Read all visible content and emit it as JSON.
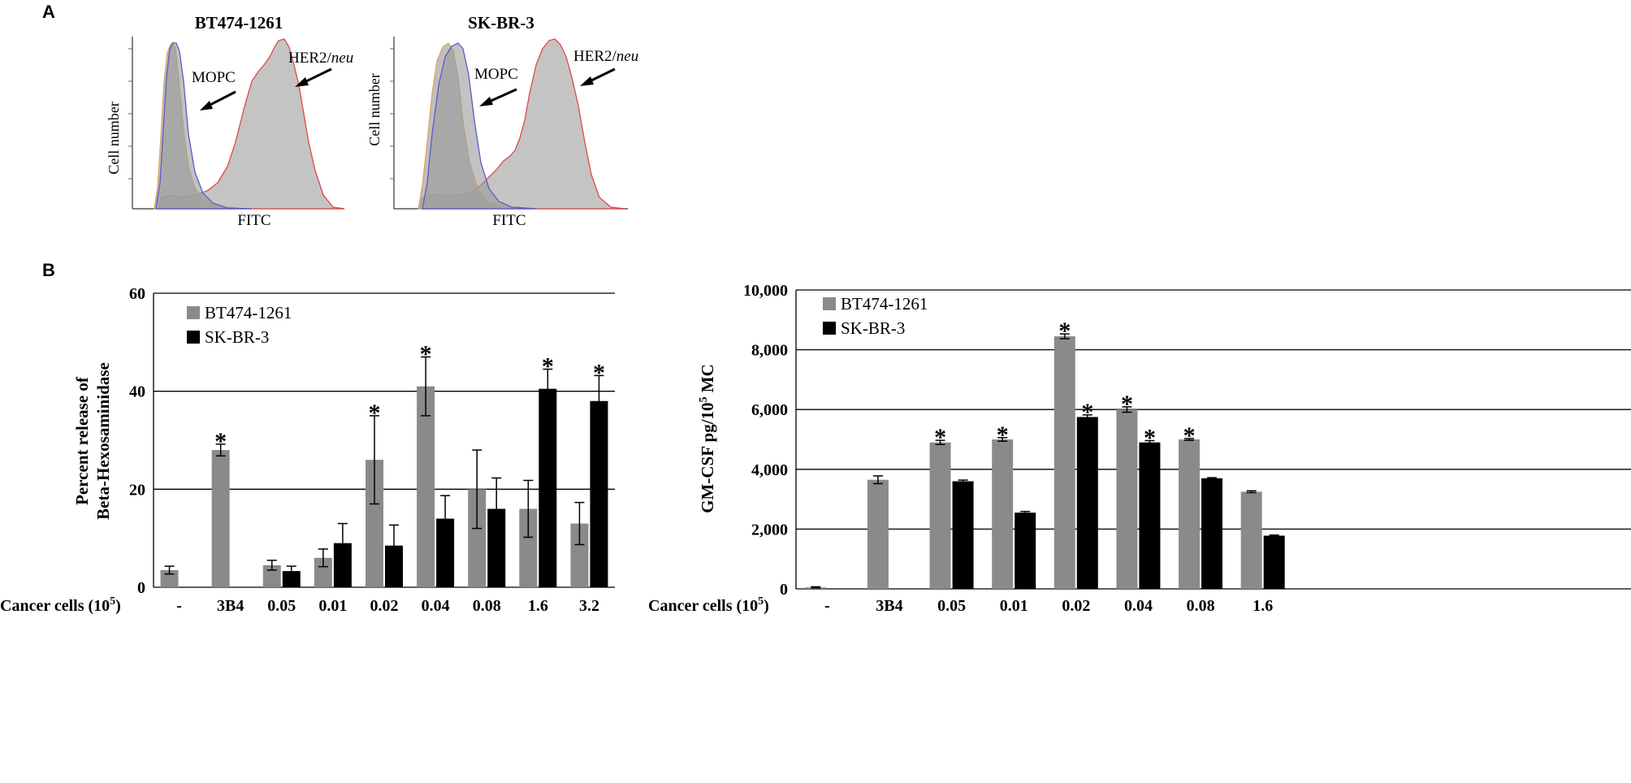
{
  "panel_a": {
    "letter": "A",
    "histograms": [
      {
        "title": "BT474-1261",
        "ylabel": "Cell  number",
        "xlabel": "FITC",
        "control_label": "MOPC",
        "target_label_prefix": "HER2/",
        "target_label_italic": "neu"
      },
      {
        "title": "SK-BR-3",
        "ylabel": "Cell  number",
        "xlabel": "FITC",
        "control_label": "MOPC",
        "target_label_prefix": "HER2/",
        "target_label_italic": "neu"
      }
    ]
  },
  "panel_b": {
    "letter": "B"
  },
  "x_axis_label": "Cancer cells (10",
  "x_axis_label_sup": "5",
  "x_axis_label_end": ")",
  "chart_data": [
    {
      "type": "bar",
      "title": "",
      "ylabel_line1": "Percent release of",
      "ylabel_line2": "Beta-Hexosaminidase",
      "xlabel": "Cancer cells (10^5)",
      "ylim": [
        0,
        60
      ],
      "yticks": [
        0,
        20,
        40,
        60
      ],
      "ytick_labels": [
        "0",
        "20",
        "40",
        "60"
      ],
      "grid": true,
      "legend": "top-left",
      "categories": [
        "-",
        "3B4",
        "0.05",
        "0.01",
        "0.02",
        "0.04",
        "0.08",
        "1.6",
        "3.2"
      ],
      "series": [
        {
          "name": "BT474-1261",
          "color": "#8a8a8a",
          "values": [
            3.5,
            28,
            4.5,
            6,
            26,
            41,
            20,
            16,
            13
          ],
          "errors": [
            0.8,
            1.2,
            1.0,
            1.8,
            9,
            6,
            8,
            5.8,
            4.3
          ],
          "significant": [
            false,
            true,
            false,
            false,
            true,
            true,
            false,
            false,
            false
          ]
        },
        {
          "name": "SK-BR-3",
          "color": "#000000",
          "values": [
            null,
            null,
            3.3,
            9,
            8.5,
            14,
            16,
            40.5,
            38
          ],
          "errors": [
            null,
            null,
            1.0,
            4,
            4.2,
            4.7,
            6.3,
            4.0,
            5.2
          ],
          "significant": [
            false,
            false,
            false,
            false,
            false,
            false,
            false,
            true,
            true
          ]
        }
      ],
      "significance_marker": "*"
    },
    {
      "type": "bar",
      "title": "",
      "ylabel_main": "GM-CSF pg/10",
      "ylabel_sup": "5",
      "ylabel_tail": " MC",
      "xlabel": "Cancer cells (10^5)",
      "ylim": [
        0,
        10000
      ],
      "yticks": [
        0,
        2000,
        4000,
        6000,
        8000,
        10000
      ],
      "ytick_labels": [
        "0",
        "2,000",
        "4,000",
        "6,000",
        "8,000",
        "10,000"
      ],
      "grid": true,
      "legend": "top-left",
      "categories": [
        "-",
        "3B4",
        "0.05",
        "0.01",
        "0.02",
        "0.04",
        "0.08",
        "1.6"
      ],
      "series": [
        {
          "name": "BT474-1261",
          "color": "#8a8a8a",
          "values": [
            50,
            3650,
            4900,
            5000,
            8450,
            6000,
            5000,
            3250
          ],
          "errors": [
            20,
            130,
            70,
            60,
            80,
            90,
            30,
            30
          ],
          "significant": [
            false,
            false,
            true,
            true,
            true,
            true,
            true,
            false
          ]
        },
        {
          "name": "SK-BR-3",
          "color": "#000000",
          "values": [
            null,
            null,
            3600,
            2550,
            5750,
            4900,
            3700,
            1780
          ],
          "errors": [
            null,
            null,
            40,
            40,
            70,
            60,
            20,
            20
          ],
          "significant": [
            false,
            false,
            false,
            false,
            true,
            true,
            false,
            false
          ]
        }
      ],
      "significance_marker": "*"
    }
  ]
}
